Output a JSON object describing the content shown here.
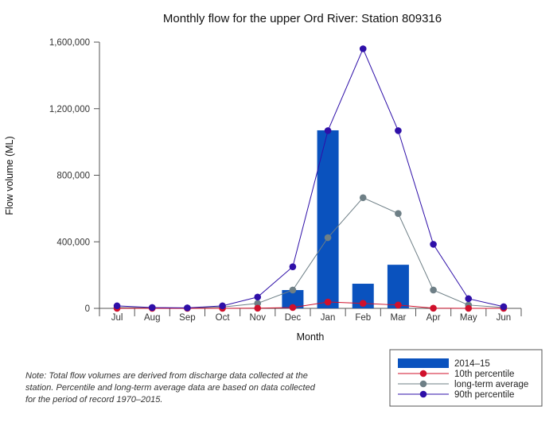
{
  "chart_data": {
    "type": "bar+line",
    "title": "Monthly flow for the upper Ord River: Station 809316",
    "xlabel": "Month",
    "ylabel": "Flow volume (ML)",
    "ylim": [
      0,
      1600000
    ],
    "yticks": [
      0,
      400000,
      800000,
      1200000,
      1600000
    ],
    "ytick_labels": [
      "0",
      "400,000",
      "800,000",
      "1,200,000",
      "1,600,000"
    ],
    "categories": [
      "Jul",
      "Aug",
      "Sep",
      "Oct",
      "Nov",
      "Dec",
      "Jan",
      "Feb",
      "Mar",
      "Apr",
      "May",
      "Jun"
    ],
    "bar_series": {
      "name": "2014–15",
      "color": "#0a52be",
      "values": [
        0,
        0,
        0,
        0,
        0,
        110000,
        1070000,
        148000,
        262000,
        0,
        0,
        0
      ]
    },
    "line_series": [
      {
        "name": "10th percentile",
        "color": "#d0102b",
        "values": [
          0,
          0,
          0,
          0,
          1000,
          5000,
          38000,
          30000,
          20000,
          1000,
          0,
          0
        ]
      },
      {
        "name": "long-term average",
        "color": "#6e7f86",
        "values": [
          5000,
          3000,
          2000,
          8000,
          30000,
          110000,
          425000,
          665000,
          570000,
          110000,
          20000,
          5000
        ]
      },
      {
        "name": "90th percentile",
        "color": "#2e0fa8",
        "values": [
          15000,
          5000,
          3000,
          15000,
          68000,
          250000,
          1068000,
          1560000,
          1068000,
          385000,
          58000,
          10000
        ]
      }
    ],
    "legend_position": "bottom-right"
  },
  "note": "Note: Total flow volumes are derived from discharge data collected at the station. Percentile and long-term average data are based on data collected for the period of record 1970–2015."
}
